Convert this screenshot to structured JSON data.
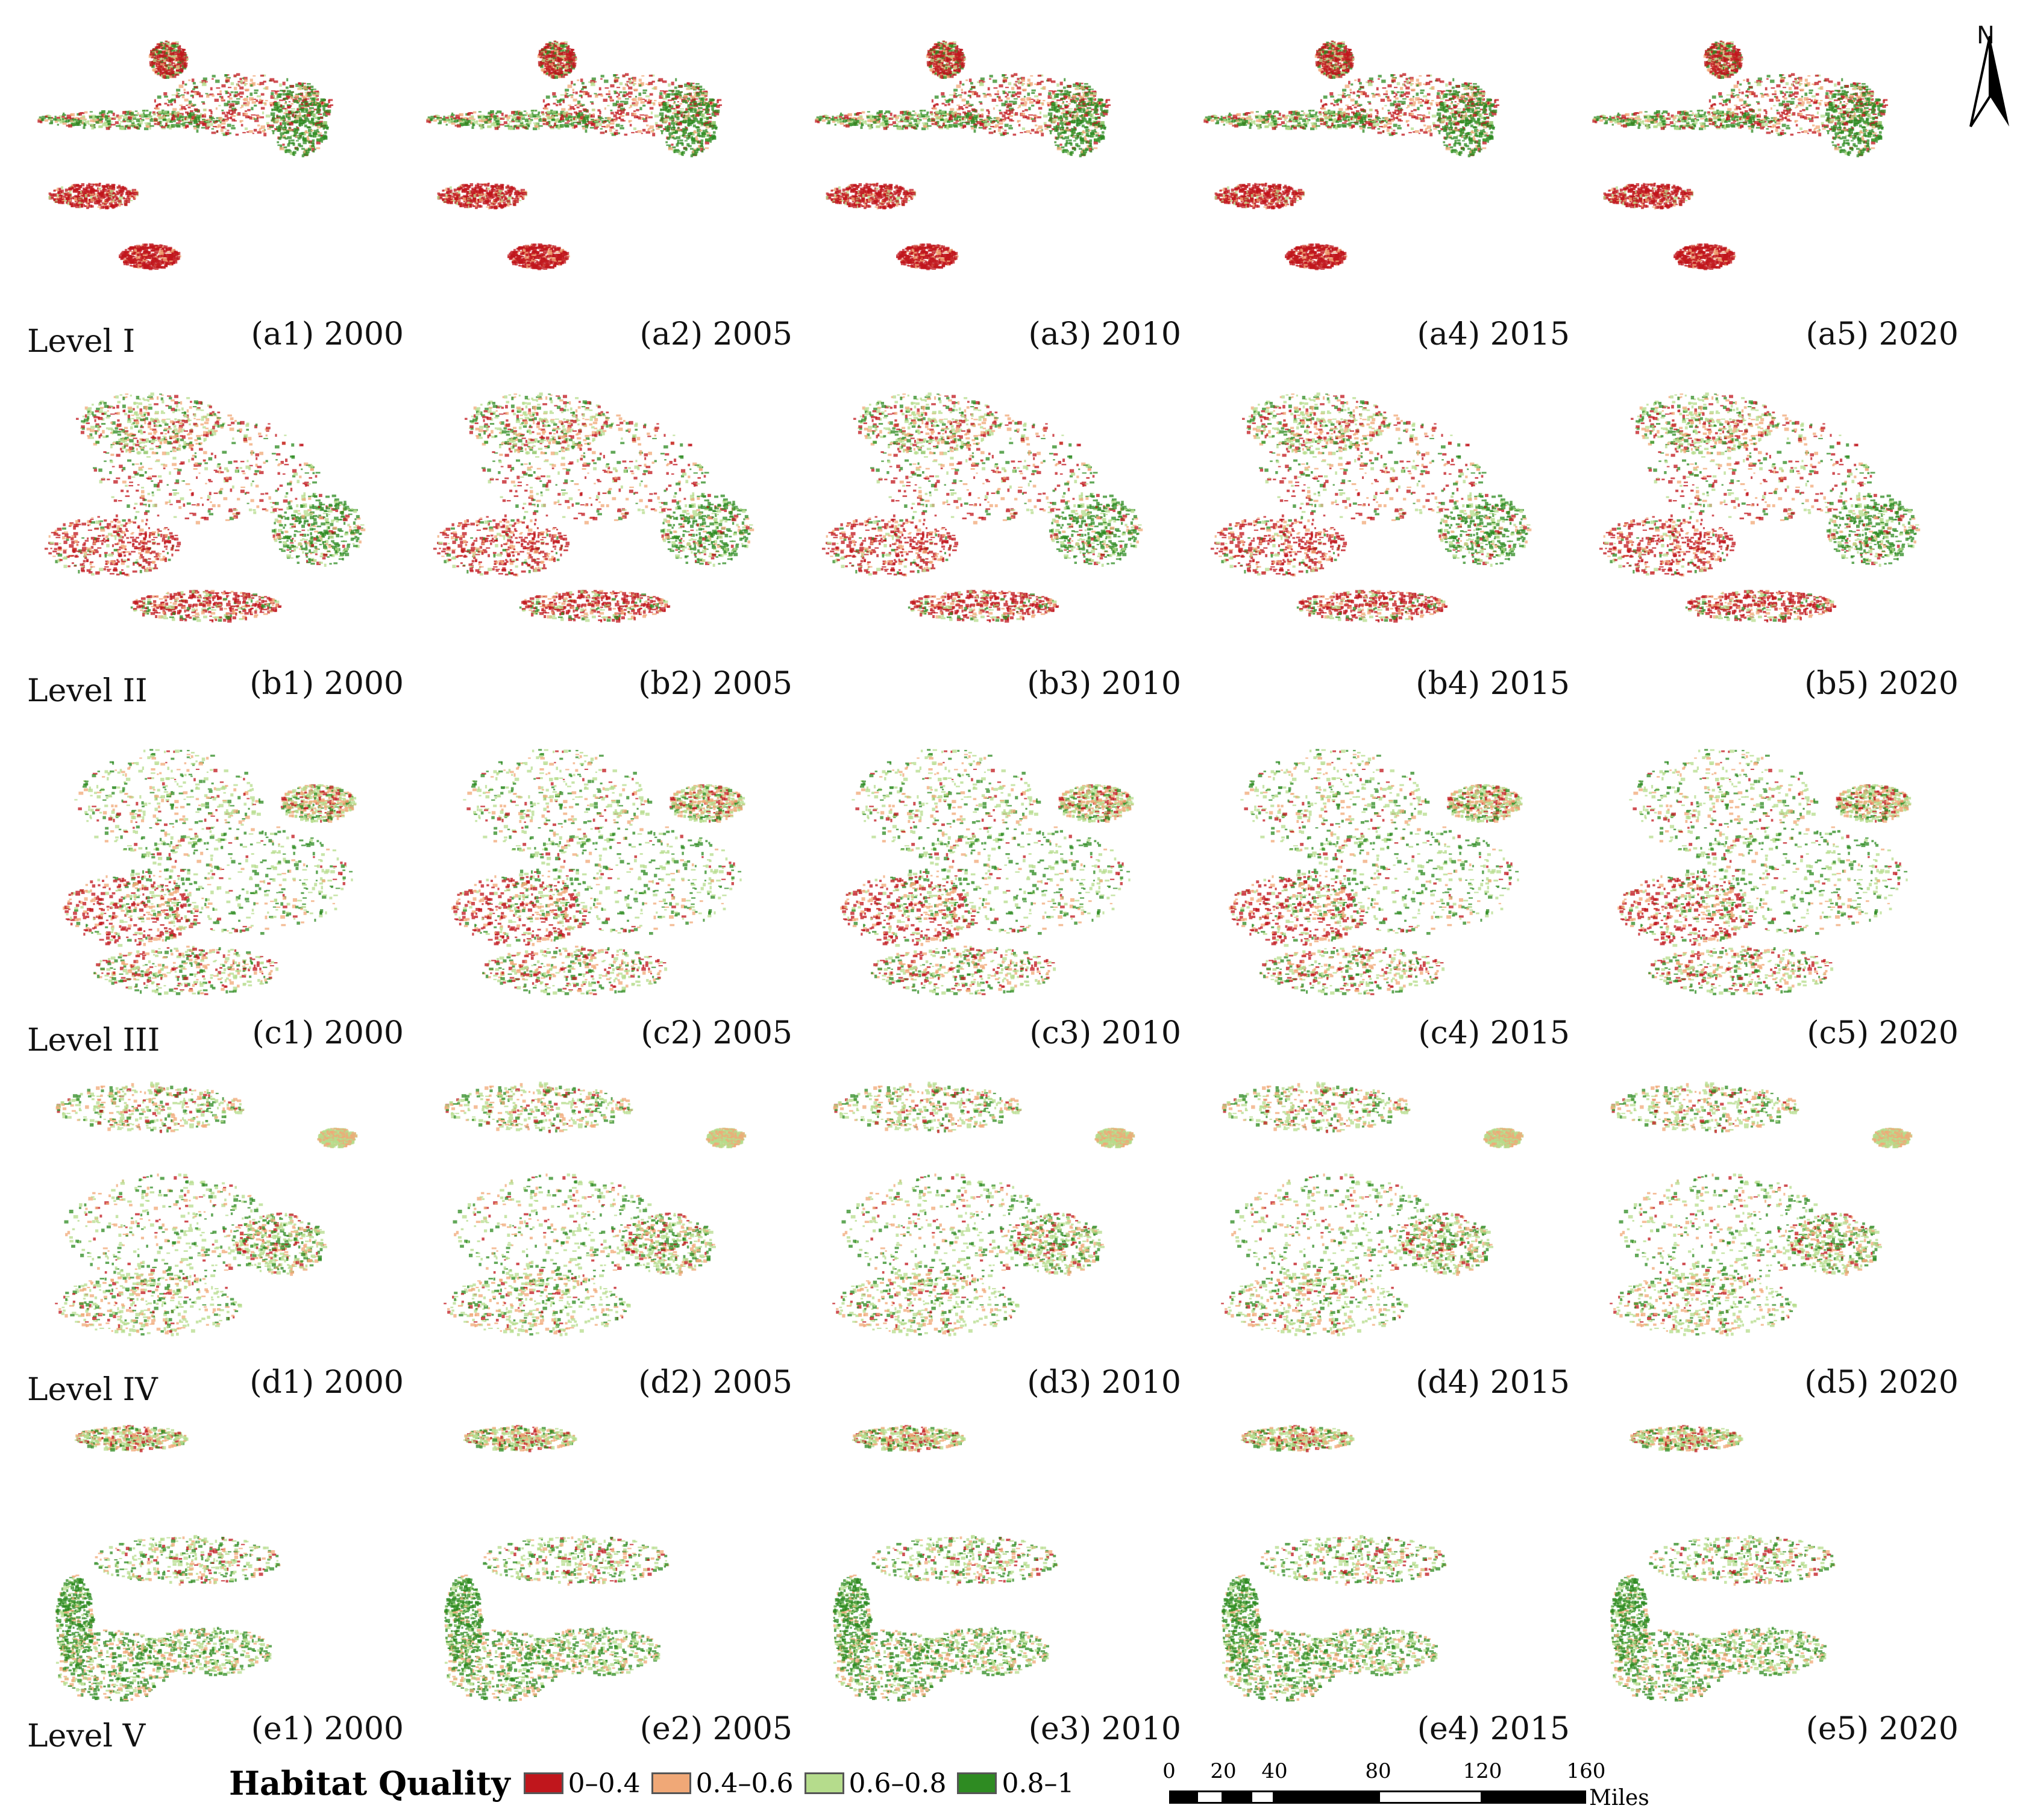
{
  "levels": [
    {
      "label": "Level I",
      "panels": [
        "(a1) 2000",
        "(a2) 2005",
        "(a3) 2010",
        "(a4) 2015",
        "(a5) 2020"
      ]
    },
    {
      "label": "Level II",
      "panels": [
        "(b1) 2000",
        "(b2) 2005",
        "(b3) 2010",
        "(b4) 2015",
        "(b5) 2020"
      ]
    },
    {
      "label": "Level III",
      "panels": [
        "(c1) 2000",
        "(c2) 2005",
        "(c3) 2010",
        "(c4) 2015",
        "(c5) 2020"
      ]
    },
    {
      "label": "Level IV",
      "panels": [
        "(d1) 2000",
        "(d2) 2005",
        "(d3) 2010",
        "(d4) 2015",
        "(d5) 2020"
      ]
    },
    {
      "label": "Level V",
      "panels": [
        "(e1) 2000",
        "(e2) 2005",
        "(e3) 2010",
        "(e4) 2015",
        "(e5) 2020"
      ]
    }
  ],
  "north_arrow": {
    "letter": "N"
  },
  "legend": {
    "title": "Habitat Quality",
    "items": [
      {
        "label": "0–0.4",
        "color": "#c0161c"
      },
      {
        "label": "0.4–0.6",
        "color": "#f0a877"
      },
      {
        "label": "0.6–0.8",
        "color": "#b5dc8c"
      },
      {
        "label": "0.8–1",
        "color": "#2e8b22"
      }
    ]
  },
  "scale_bar": {
    "ticks": [
      "0",
      "20",
      "40",
      "80",
      "120",
      "160"
    ],
    "unit": "Miles"
  }
}
